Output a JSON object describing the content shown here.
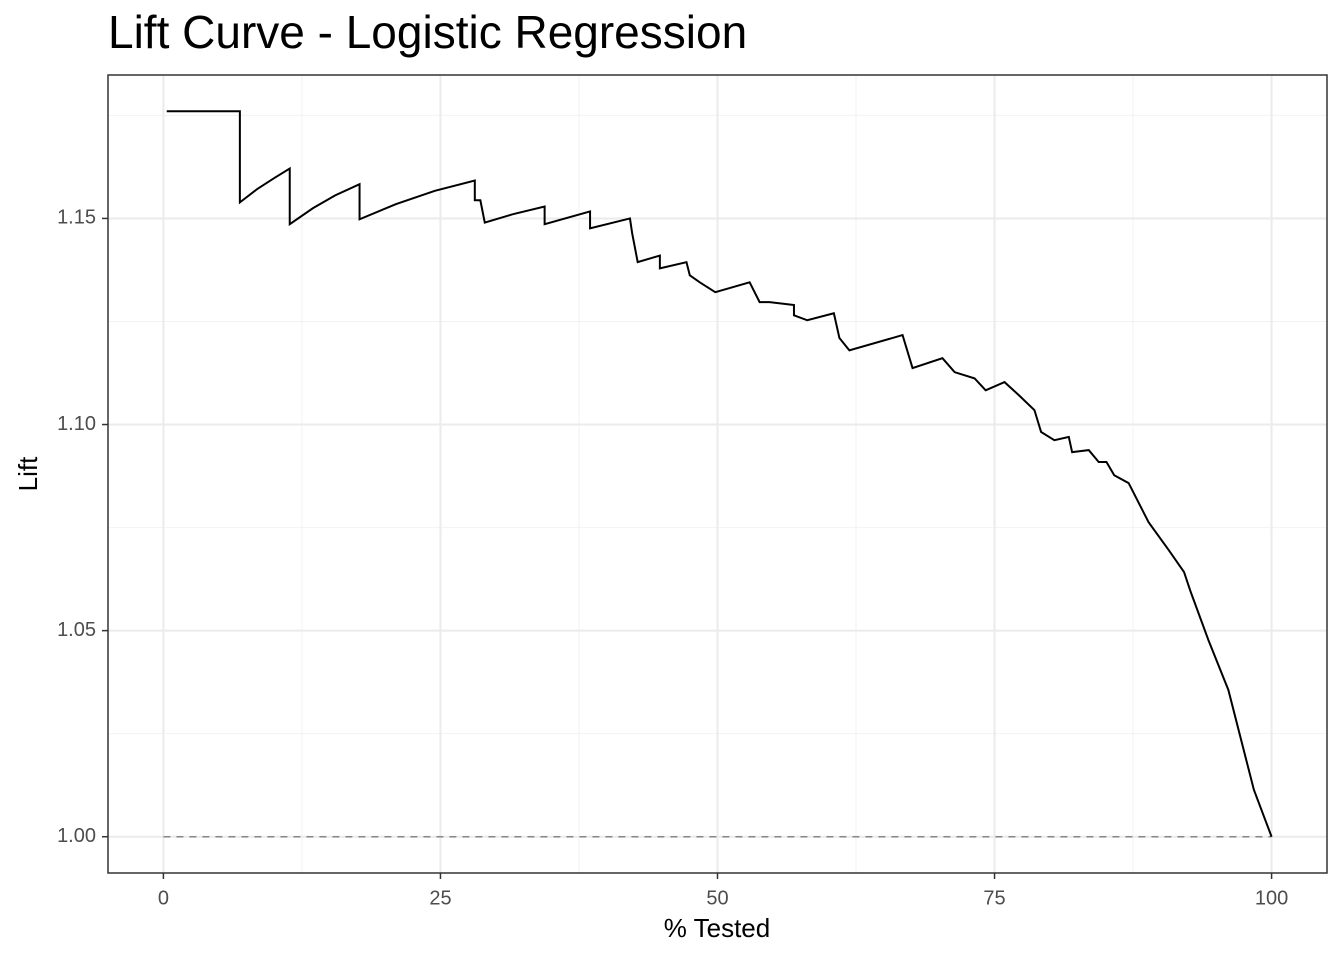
{
  "chart_data": {
    "type": "line",
    "title": "Lift Curve - Logistic Regression",
    "x_label": "% Tested",
    "y_label": "Lift",
    "xlim": [
      -5,
      105
    ],
    "ylim": [
      0.9912,
      1.1848
    ],
    "xticks": [
      0,
      25,
      50,
      75,
      100
    ],
    "yticks": [
      {
        "value": 1.0,
        "label": "1.00"
      },
      {
        "value": 1.05,
        "label": "1.05"
      },
      {
        "value": 1.1,
        "label": "1.10"
      },
      {
        "value": 1.15,
        "label": "1.15"
      }
    ],
    "xminor": [
      12.5,
      37.5,
      62.5,
      87.5
    ],
    "yminor": [
      1.025,
      1.075,
      1.125,
      1.175
    ],
    "grid": true,
    "hline": {
      "value": 1.0,
      "color": "#888888"
    },
    "series": [
      {
        "name": "Lift",
        "color": "#000000",
        "x": [
          0.3,
          6.9,
          6.9,
          8.5,
          10.0,
          11.4,
          11.4,
          13.5,
          15.5,
          17.7,
          17.7,
          21.0,
          24.5,
          28.1,
          28.1,
          28.6,
          29.0,
          29.0,
          31.5,
          34.4,
          34.4,
          38.5,
          38.5,
          42.1,
          42.3,
          42.8,
          42.8,
          44.8,
          44.8,
          47.2,
          47.5,
          48.4,
          49.8,
          52.9,
          53.8,
          54.7,
          56.9,
          56.9,
          58.1,
          60.5,
          61.0,
          61.9,
          66.7,
          67.6,
          70.3,
          71.4,
          73.2,
          74.2,
          75.9,
          77.2,
          78.6,
          79.2,
          80.4,
          81.7,
          82.0,
          83.5,
          84.4,
          85.1,
          85.8,
          87.1,
          88.9,
          90.7,
          92.1,
          92.7,
          94.3,
          96.1,
          98.4,
          100.0
        ],
        "values": [
          1.176,
          1.176,
          1.1539,
          1.1572,
          1.1598,
          1.1621,
          1.1486,
          1.1525,
          1.1556,
          1.1583,
          1.1498,
          1.1535,
          1.1567,
          1.1592,
          1.1544,
          1.1544,
          1.149,
          1.149,
          1.151,
          1.1529,
          1.1486,
          1.1517,
          1.1476,
          1.15,
          1.1464,
          1.1394,
          1.1394,
          1.141,
          1.1379,
          1.1394,
          1.1362,
          1.1345,
          1.1321,
          1.1345,
          1.1297,
          1.1297,
          1.129,
          1.1265,
          1.1253,
          1.127,
          1.121,
          1.118,
          1.1217,
          1.1137,
          1.1161,
          1.1127,
          1.1112,
          1.1083,
          1.1103,
          1.1071,
          1.1035,
          1.0982,
          1.0962,
          1.097,
          1.0933,
          1.0938,
          1.0909,
          1.0909,
          1.0877,
          1.0858,
          1.0763,
          1.0696,
          1.0642,
          1.0594,
          1.0477,
          1.0356,
          1.0114,
          1.0
        ]
      }
    ]
  }
}
